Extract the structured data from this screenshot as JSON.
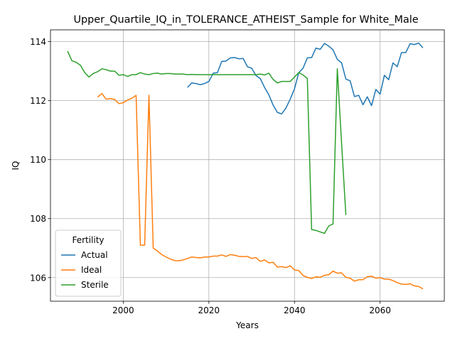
{
  "chart_data": {
    "type": "line",
    "title": "Upper_Quartile_IQ_in_TOLERANCE_ATHEIST_Sample for White_Male",
    "xlabel": "Years",
    "ylabel": "IQ",
    "xlim": [
      1983,
      2075
    ],
    "ylim": [
      105.2,
      114.4
    ],
    "xticks": [
      2000,
      2020,
      2040,
      2060
    ],
    "yticks": [
      106,
      108,
      110,
      112,
      114
    ],
    "grid": true,
    "legend": {
      "title": "Fertility",
      "position": "lower-left"
    },
    "series": [
      {
        "name": "Actual",
        "color": "#1f77b4",
        "x": [
          2015,
          2016,
          2017,
          2018,
          2019,
          2020,
          2021,
          2022,
          2023,
          2024,
          2025,
          2026,
          2027,
          2028,
          2029,
          2030,
          2031,
          2032,
          2033,
          2034,
          2035,
          2036,
          2037,
          2038,
          2039,
          2040,
          2041,
          2042,
          2043,
          2044,
          2045,
          2046,
          2047,
          2048,
          2049,
          2050,
          2051,
          2052,
          2053,
          2054,
          2055,
          2056,
          2057,
          2058,
          2059,
          2060,
          2061,
          2062,
          2063,
          2064,
          2065,
          2066,
          2067,
          2068,
          2069,
          2070
        ],
        "y": [
          112.45,
          112.6,
          112.58,
          112.54,
          112.58,
          112.65,
          112.93,
          112.95,
          113.33,
          113.34,
          113.45,
          113.46,
          113.42,
          113.43,
          113.15,
          113.1,
          112.85,
          112.75,
          112.45,
          112.2,
          111.85,
          111.6,
          111.55,
          111.75,
          112.05,
          112.4,
          112.95,
          113.1,
          113.45,
          113.46,
          113.78,
          113.74,
          113.94,
          113.85,
          113.72,
          113.4,
          113.28,
          112.73,
          112.67,
          112.14,
          112.18,
          111.86,
          112.13,
          111.83,
          112.38,
          112.22,
          112.86,
          112.71,
          113.28,
          113.15,
          113.63,
          113.63,
          113.93,
          113.9,
          113.95,
          113.79
        ]
      },
      {
        "name": "Ideal",
        "color": "#ff7f0e",
        "x": [
          1994,
          1995,
          1996,
          1997,
          1998,
          1999,
          2000,
          2001,
          2002,
          2003,
          2004,
          2005,
          2006,
          2007,
          2008,
          2009,
          2010,
          2011,
          2012,
          2013,
          2014,
          2015,
          2016,
          2017,
          2018,
          2019,
          2020,
          2021,
          2022,
          2023,
          2024,
          2025,
          2026,
          2027,
          2028,
          2029,
          2030,
          2031,
          2032,
          2033,
          2034,
          2035,
          2036,
          2037,
          2038,
          2039,
          2040,
          2041,
          2042,
          2043,
          2044,
          2045,
          2046,
          2047,
          2048,
          2049,
          2050,
          2051,
          2052,
          2053,
          2054,
          2055,
          2056,
          2057,
          2058,
          2059,
          2060,
          2061,
          2062,
          2063,
          2064,
          2065,
          2066,
          2067,
          2068,
          2069,
          2070
        ],
        "y": [
          112.12,
          112.24,
          112.05,
          112.07,
          112.04,
          111.9,
          111.93,
          112.02,
          112.08,
          112.18,
          107.1,
          107.1,
          112.18,
          107.0,
          106.9,
          106.78,
          106.7,
          106.63,
          106.58,
          106.57,
          106.6,
          106.65,
          106.7,
          106.68,
          106.67,
          106.7,
          106.7,
          106.73,
          106.73,
          106.77,
          106.72,
          106.78,
          106.76,
          106.72,
          106.71,
          106.72,
          106.65,
          106.68,
          106.55,
          106.6,
          106.5,
          106.52,
          106.36,
          106.37,
          106.34,
          106.4,
          106.26,
          106.24,
          106.07,
          106.01,
          105.97,
          106.03,
          106.01,
          106.08,
          106.1,
          106.22,
          106.15,
          106.16,
          106.01,
          105.98,
          105.88,
          105.93,
          105.93,
          106.03,
          106.05,
          105.98,
          106.0,
          105.95,
          105.95,
          105.9,
          105.83,
          105.78,
          105.77,
          105.79,
          105.72,
          105.7,
          105.62
        ]
      },
      {
        "name": "Sterile",
        "color": "#2ca02c",
        "x": [
          1987,
          1988,
          1989,
          1990,
          1991,
          1992,
          1993,
          1994,
          1995,
          1996,
          1997,
          1998,
          1999,
          2000,
          2001,
          2002,
          2003,
          2004,
          2005,
          2006,
          2007,
          2008,
          2009,
          2010,
          2011,
          2012,
          2013,
          2014,
          2015,
          2016,
          2017,
          2018,
          2019,
          2020,
          2021,
          2022,
          2023,
          2024,
          2025,
          2026,
          2027,
          2028,
          2029,
          2030,
          2031,
          2032,
          2033,
          2034,
          2035,
          2036,
          2037,
          2038,
          2039,
          2040,
          2041,
          2042,
          2043,
          2044,
          2045,
          2046,
          2047,
          2048,
          2049,
          2050,
          2051,
          2052
        ],
        "y": [
          113.68,
          113.35,
          113.3,
          113.2,
          112.95,
          112.8,
          112.92,
          112.98,
          113.08,
          113.05,
          113.0,
          113.0,
          112.86,
          112.88,
          112.82,
          112.88,
          112.88,
          112.95,
          112.9,
          112.88,
          112.92,
          112.93,
          112.9,
          112.92,
          112.92,
          112.9,
          112.9,
          112.9,
          112.88,
          112.89,
          112.88,
          112.88,
          112.88,
          112.88,
          112.88,
          112.88,
          112.88,
          112.88,
          112.88,
          112.88,
          112.88,
          112.88,
          112.88,
          112.88,
          112.88,
          112.9,
          112.87,
          112.93,
          112.72,
          112.6,
          112.65,
          112.65,
          112.65,
          112.8,
          112.95,
          112.87,
          112.75,
          107.63,
          107.6,
          107.55,
          107.5,
          107.75,
          107.82,
          113.08,
          110.55,
          108.12
        ]
      }
    ]
  }
}
